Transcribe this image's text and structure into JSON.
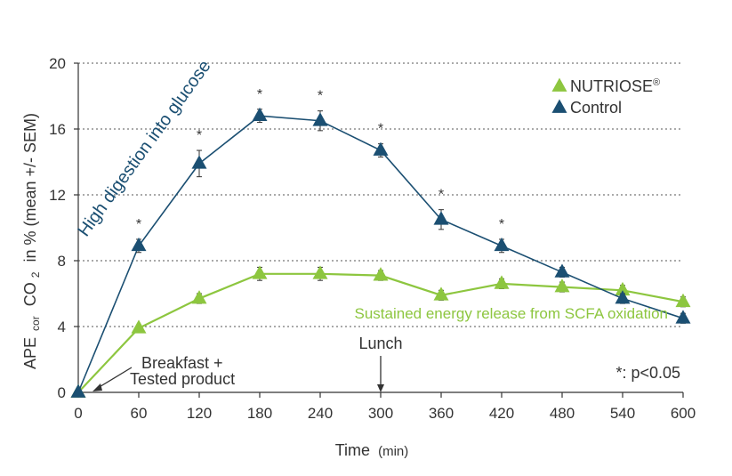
{
  "chart_data": {
    "type": "line",
    "xlabel": "Time",
    "xlabel_unit": "(min)",
    "ylabel_parts": {
      "prefix": "APE",
      "sub1": "cor",
      "mid": "CO",
      "sub2": "2",
      "suffix": "in % (mean +/- SEM)"
    },
    "xlim": [
      0,
      600
    ],
    "ylim": [
      0,
      20
    ],
    "x_ticks": [
      0,
      60,
      120,
      180,
      240,
      300,
      360,
      420,
      480,
      540,
      600
    ],
    "x_tick_labels": [
      "0",
      "60",
      "120",
      "180",
      "240",
      "300",
      "360",
      "420",
      "480",
      "540",
      "600"
    ],
    "y_ticks": [
      0,
      4,
      8,
      12,
      16,
      20
    ],
    "y_tick_labels": [
      "0",
      "4",
      "8",
      "12",
      "16",
      "20"
    ],
    "grid": "horizontal dotted",
    "legend_position": "top-right",
    "x": [
      0,
      60,
      120,
      180,
      240,
      300,
      360,
      420,
      480,
      540,
      600
    ],
    "series": [
      {
        "name": "NUTRIOSE",
        "name_sup": "®",
        "color": "#8dc63f",
        "values": [
          0,
          3.9,
          5.7,
          7.2,
          7.2,
          7.1,
          5.9,
          6.6,
          6.4,
          6.2,
          5.5
        ],
        "errors": [
          0,
          0.2,
          0.3,
          0.4,
          0.4,
          0.3,
          0.3,
          0.3,
          0.3,
          0.3,
          0.3
        ]
      },
      {
        "name": "Control",
        "color": "#1b4f72",
        "values": [
          0,
          8.9,
          13.9,
          16.8,
          16.5,
          14.7,
          10.5,
          8.9,
          7.3,
          5.7,
          4.5
        ],
        "errors": [
          0,
          0.4,
          0.8,
          0.4,
          0.6,
          0.4,
          0.6,
          0.4,
          0.3,
          0.3,
          0.3
        ]
      }
    ],
    "significance_x": [
      60,
      120,
      180,
      240,
      300,
      360,
      420
    ],
    "significance_symbol": "*",
    "annotations": {
      "control_curve": "High digestion into glucose",
      "nutriose_curve": "Sustained energy release from SCFA oxidation",
      "breakfast_line1": "Breakfast +",
      "breakfast_line2": "Tested product",
      "breakfast_x": 0,
      "lunch": "Lunch",
      "lunch_x": 300,
      "p_value": "*: p<0.05"
    }
  }
}
